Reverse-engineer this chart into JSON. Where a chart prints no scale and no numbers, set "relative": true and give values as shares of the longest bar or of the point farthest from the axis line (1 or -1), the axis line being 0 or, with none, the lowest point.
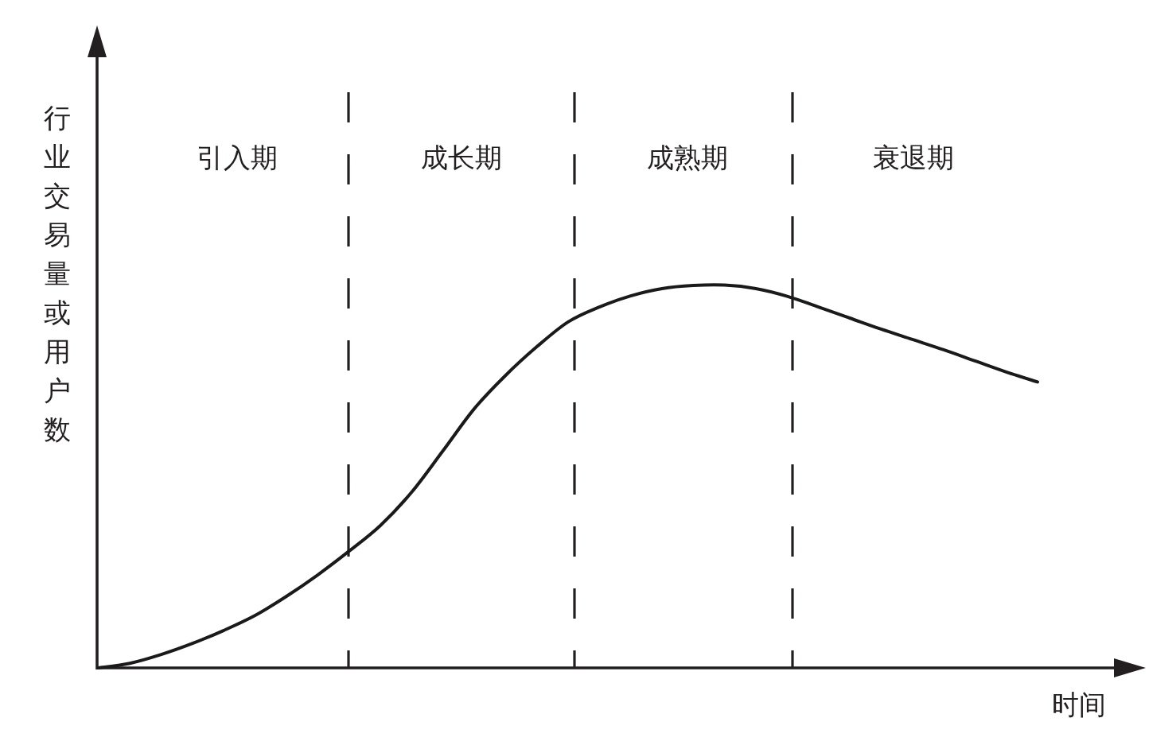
{
  "chart_data": {
    "type": "line",
    "relative": true,
    "xlabel": "时间",
    "ylabel": "行业交易量或用户数",
    "color": "#1a1a1a",
    "categories": [
      null,
      null,
      null,
      null,
      null,
      null,
      null,
      null,
      null,
      null,
      null,
      null,
      null,
      null,
      null,
      null,
      null,
      null,
      null,
      null,
      null,
      null,
      null,
      null,
      null,
      null,
      null,
      null,
      null,
      null,
      null
    ],
    "values": [
      0,
      0.012,
      0.035,
      0.064,
      0.098,
      0.137,
      0.187,
      0.243,
      0.305,
      0.372,
      0.459,
      0.567,
      0.677,
      0.764,
      0.839,
      0.904,
      0.943,
      0.972,
      0.991,
      0.999,
      1,
      0.991,
      0.971,
      0.943,
      0.914,
      0.885,
      0.858,
      0.831,
      0.802,
      0.773,
      0.747
    ],
    "annotations": [
      "引入期",
      "成长期",
      "成熟期",
      "衰退期"
    ]
  }
}
